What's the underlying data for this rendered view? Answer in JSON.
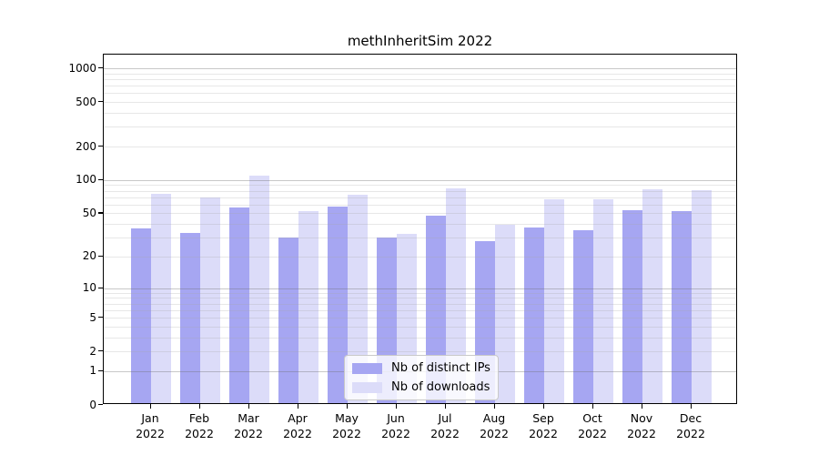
{
  "title": "methInheritSim 2022",
  "chart_data": {
    "type": "bar",
    "title": "methInheritSim 2022",
    "categories": [
      "Jan 2022",
      "Feb 2022",
      "Mar 2022",
      "Apr 2022",
      "May 2022",
      "Jun 2022",
      "Jul 2022",
      "Aug 2022",
      "Sep 2022",
      "Oct 2022",
      "Nov 2022",
      "Dec 2022"
    ],
    "series": [
      {
        "name": "Nb of distinct IPs",
        "color": "#a6a6f2",
        "values": [
          35,
          32,
          54,
          29,
          56,
          29,
          46,
          27,
          36,
          34,
          51,
          50
        ]
      },
      {
        "name": "Nb of downloads",
        "color": "#dcdcf9",
        "values": [
          72,
          67,
          106,
          50,
          71,
          31,
          81,
          38,
          65,
          64,
          79,
          78
        ]
      }
    ],
    "xlabel": "",
    "ylabel": "",
    "y_ticks": [
      0,
      1,
      2,
      5,
      10,
      20,
      50,
      100,
      200,
      500,
      1000
    ],
    "y_scale": "log10(value+1), zero at baseline",
    "ylim": [
      0,
      1320
    ],
    "grid": {
      "orientation": "horizontal",
      "major_lines": [
        1,
        10,
        100,
        1000
      ],
      "minor_lines": [
        2,
        3,
        4,
        5,
        6,
        7,
        8,
        9,
        20,
        30,
        40,
        50,
        60,
        70,
        80,
        90,
        200,
        300,
        400,
        500,
        600,
        700,
        800,
        900
      ]
    },
    "legend": {
      "position": "lower center"
    },
    "colors": {
      "bar_distinct_ips": "#a6a6f2",
      "bar_downloads": "#dcdcf9",
      "grid_major": "#6e6e6e",
      "grid_minor": "#aaaaaa",
      "axis": "#000000",
      "background": "#ffffff"
    }
  }
}
